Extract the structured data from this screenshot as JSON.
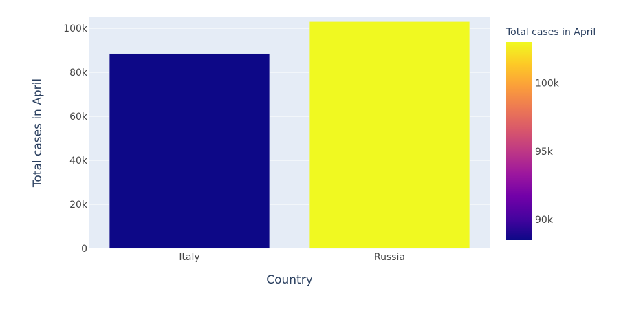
{
  "chart_data": {
    "type": "bar",
    "xlabel": "Country",
    "ylabel": "Total cases in April",
    "categories": [
      "Italy",
      "Russia"
    ],
    "values": [
      88500,
      103000
    ],
    "ylim": [
      0,
      105000
    ],
    "yticks": [
      0,
      20000,
      40000,
      60000,
      80000,
      100000
    ],
    "ytick_labels": [
      "0",
      "20k",
      "40k",
      "60k",
      "80k",
      "100k"
    ],
    "grid": true,
    "colorbar": {
      "title": "Total cases in April",
      "range": [
        88500,
        103000
      ],
      "ticks": [
        90000,
        95000,
        100000
      ],
      "tick_labels": [
        "90k",
        "95k",
        "100k"
      ],
      "colorscale": [
        "#0d0887",
        "#46039f",
        "#7201a8",
        "#9c179e",
        "#bd3786",
        "#d8576b",
        "#ed7953",
        "#fb9f3a",
        "#fdca26",
        "#f0f921"
      ]
    },
    "colors": {
      "plot_bg": "#e5ecf6",
      "grid": "#ffffff",
      "text": "#444444",
      "axis_title": "#2a3f5f"
    }
  }
}
